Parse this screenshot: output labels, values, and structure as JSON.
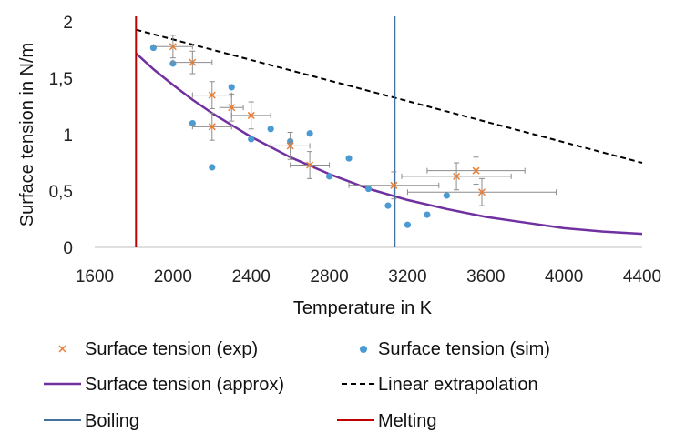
{
  "chart_data": {
    "type": "scatter",
    "xlabel": "Temperature in K",
    "ylabel": "Surface tension in N/m",
    "xlim": [
      1600,
      4400
    ],
    "ylim": [
      0,
      2
    ],
    "xticks": [
      "1600",
      "2000",
      "2400",
      "2800",
      "3200",
      "3600",
      "4000",
      "4400"
    ],
    "yticks": [
      "0",
      "0,5",
      "1",
      "1,5",
      "2"
    ],
    "grid": false,
    "legend_position": "bottom",
    "series": [
      {
        "name": "Surface tension (exp)",
        "kind": "scatter-errorbar",
        "marker": "cross",
        "color": "#ED7D31",
        "points": [
          {
            "x": 2000,
            "y": 1.78,
            "xerr": 100,
            "yerr": 0.1
          },
          {
            "x": 2100,
            "y": 1.64,
            "xerr": 100,
            "yerr": 0.1
          },
          {
            "x": 2200,
            "y": 1.35,
            "xerr": 100,
            "yerr": 0.12
          },
          {
            "x": 2300,
            "y": 1.24,
            "xerr": 60,
            "yerr": 0.12
          },
          {
            "x": 2400,
            "y": 1.17,
            "xerr": 100,
            "yerr": 0.12
          },
          {
            "x": 2200,
            "y": 1.07,
            "xerr": 100,
            "yerr": 0.12
          },
          {
            "x": 2600,
            "y": 0.9,
            "xerr": 100,
            "yerr": 0.12
          },
          {
            "x": 2700,
            "y": 0.73,
            "xerr": 100,
            "yerr": 0.12
          },
          {
            "x": 3130,
            "y": 0.55,
            "xerr": 230,
            "yerr": 0.12
          },
          {
            "x": 3450,
            "y": 0.63,
            "xerr": 280,
            "yerr": 0.12
          },
          {
            "x": 3550,
            "y": 0.68,
            "xerr": 250,
            "yerr": 0.12
          },
          {
            "x": 3580,
            "y": 0.49,
            "xerr": 380,
            "yerr": 0.12
          }
        ]
      },
      {
        "name": "Surface tension (sim)",
        "kind": "scatter",
        "marker": "circle",
        "color": "#4A9BD4",
        "points": [
          {
            "x": 1900,
            "y": 1.77
          },
          {
            "x": 2000,
            "y": 1.63
          },
          {
            "x": 2300,
            "y": 1.42
          },
          {
            "x": 2100,
            "y": 1.1
          },
          {
            "x": 2200,
            "y": 0.71
          },
          {
            "x": 2400,
            "y": 0.96
          },
          {
            "x": 2500,
            "y": 1.05
          },
          {
            "x": 2600,
            "y": 0.94
          },
          {
            "x": 2700,
            "y": 1.01
          },
          {
            "x": 2800,
            "y": 0.63
          },
          {
            "x": 2900,
            "y": 0.79
          },
          {
            "x": 3000,
            "y": 0.52
          },
          {
            "x": 3100,
            "y": 0.37
          },
          {
            "x": 3200,
            "y": 0.2
          },
          {
            "x": 3300,
            "y": 0.29
          },
          {
            "x": 3400,
            "y": 0.46
          }
        ]
      },
      {
        "name": "Surface tension (approx)",
        "kind": "line",
        "style": "solid",
        "color": "#7030A0",
        "x": [
          1811,
          1900,
          2000,
          2100,
          2200,
          2400,
          2600,
          2800,
          3000,
          3200,
          3400,
          3600,
          3800,
          4000,
          4200,
          4400
        ],
        "values": [
          1.72,
          1.58,
          1.44,
          1.31,
          1.19,
          0.98,
          0.8,
          0.65,
          0.52,
          0.42,
          0.34,
          0.27,
          0.22,
          0.17,
          0.14,
          0.12
        ]
      },
      {
        "name": "Linear extrapolation",
        "kind": "line",
        "style": "dashed",
        "color": "#000000",
        "x": [
          1811,
          4400
        ],
        "values": [
          1.93,
          0.75
        ]
      },
      {
        "name": "Boiling",
        "kind": "vline",
        "color": "#4472A0",
        "x": 3134
      },
      {
        "name": "Melting",
        "kind": "vline",
        "color": "#C00000",
        "x": 1811
      }
    ]
  }
}
